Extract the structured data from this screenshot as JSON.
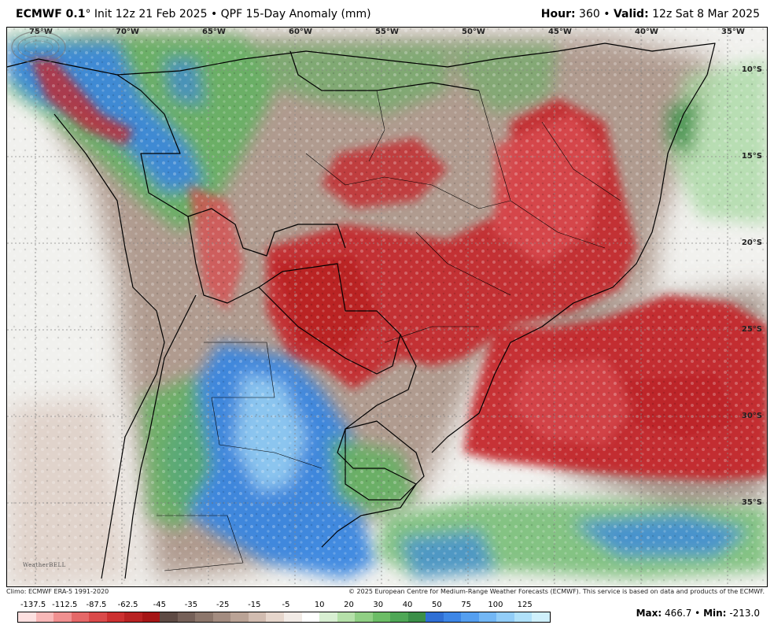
{
  "header": {
    "model": "ECMWF 0.1",
    "degree": "°",
    "init_text": "Init 12z 21 Feb 2025",
    "bullet": "•",
    "product": "QPF 15-Day Anomaly (mm)",
    "hour_label": "Hour:",
    "hour_value": "360",
    "valid_label": "Valid:",
    "valid_value": "12z Sat 8 Mar 2025"
  },
  "map": {
    "longitude_labels": [
      "75°W",
      "70°W",
      "65°W",
      "60°W",
      "55°W",
      "50°W",
      "45°W",
      "40°W",
      "35°W"
    ],
    "latitude_labels": [
      "10°S",
      "15°S",
      "20°S",
      "25°S",
      "30°S",
      "35°S"
    ],
    "logo_name": "WeatherBELL"
  },
  "footer": {
    "climo": "Climo: ECMWF ERA-5 1991-2020",
    "copyright": "© 2025 European Centre for Medium-Range Weather Forecasts (ECMWF). This service is based on data and products of the ECMWF.",
    "max_label": "Max:",
    "max_value": "466.7",
    "min_label": "Min:",
    "min_value": "-213.0"
  },
  "legend": {
    "labels": [
      "-137.5",
      "-112.5",
      "-87.5",
      "-62.5",
      "-45",
      "-35",
      "-25",
      "-15",
      "-5",
      "10",
      "20",
      "30",
      "40",
      "50",
      "75",
      "100",
      "125"
    ],
    "colors": [
      "#fde0e0",
      "#f8b8b8",
      "#f09090",
      "#e56868",
      "#da4a4a",
      "#cc3030",
      "#b82222",
      "#a51616",
      "#5e4a44",
      "#756058",
      "#8c766b",
      "#a38c80",
      "#baa396",
      "#d1bcb0",
      "#e6d6cc",
      "#f2ebe6",
      "#ffffff",
      "#d8efd2",
      "#b5e0a9",
      "#90cf84",
      "#6cbd66",
      "#4fa756",
      "#3b8f48",
      "#2f6fd4",
      "#3d86e6",
      "#559ff0",
      "#73b7f5",
      "#92cdf8",
      "#b0e1fa",
      "#cff0fc"
    ]
  },
  "colors": {
    "dry_deep": "#c4272d",
    "dry_mid": "#d84a4e",
    "brown": "#8a7266",
    "wet_green": "#5fb35f",
    "wet_blue": "#3a86e0",
    "light_blue": "#9fd4f4",
    "border_line": "#000000",
    "grid_line": "#888888"
  }
}
